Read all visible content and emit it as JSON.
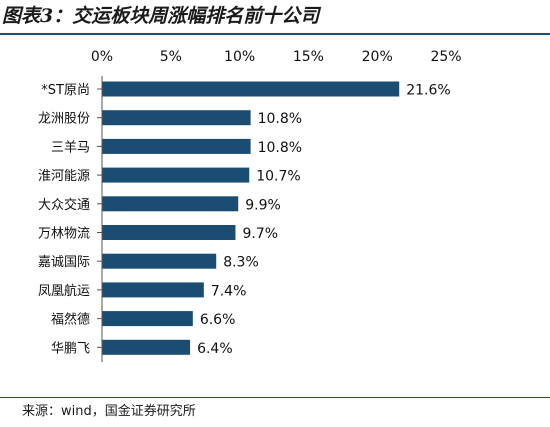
{
  "title": "图表3：交运板块周涨幅排名前十公司",
  "source": "来源：wind，国金证券研究所",
  "colors": {
    "bar": "#1b4d72",
    "rule": "#1c4f80"
  },
  "chart_data": {
    "type": "bar",
    "orientation": "horizontal",
    "title": "图表3：交运板块周涨幅排名前十公司",
    "categories": [
      "*ST原尚",
      "龙洲股份",
      "三羊马",
      "淮河能源",
      "大众交通",
      "万林物流",
      "嘉诚国际",
      "凤凰航运",
      "福然德",
      "华鹏飞"
    ],
    "values": [
      21.6,
      10.8,
      10.8,
      10.7,
      9.9,
      9.7,
      8.3,
      7.4,
      6.6,
      6.4
    ],
    "value_labels": [
      "21.6%",
      "10.8%",
      "10.8%",
      "10.7%",
      "9.9%",
      "9.7%",
      "8.3%",
      "7.4%",
      "6.6%",
      "6.4%"
    ],
    "xlim": [
      0,
      25
    ],
    "xticks": [
      0,
      5,
      10,
      15,
      20,
      25
    ],
    "xtick_labels": [
      "0%",
      "5%",
      "10%",
      "15%",
      "20%",
      "25%"
    ],
    "x_axis_position": "top",
    "grid": false,
    "legend": "none"
  }
}
